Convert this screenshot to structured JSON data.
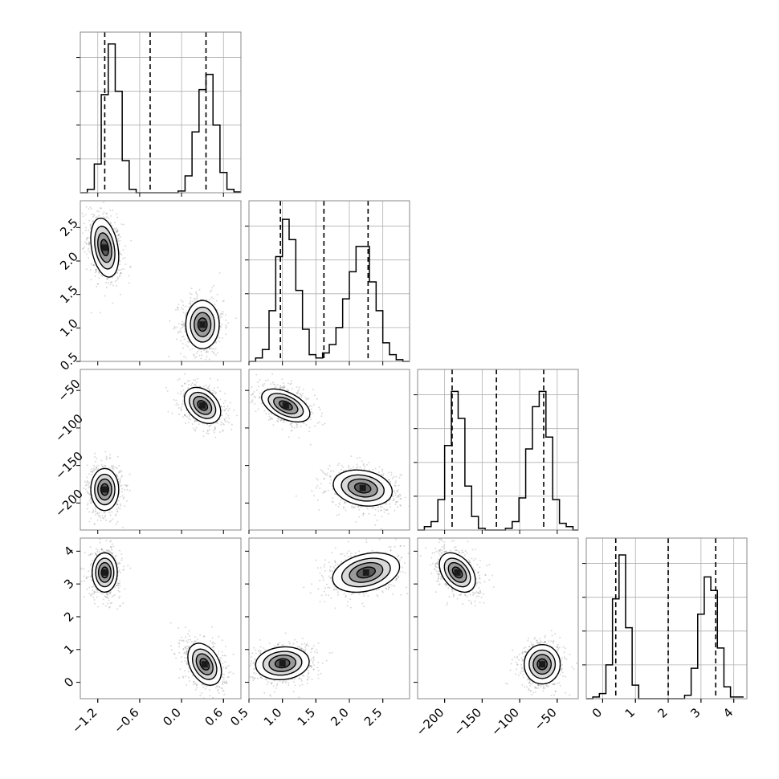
{
  "chart_data": {
    "type": "corner",
    "grid": true,
    "histogram_style": "step",
    "colors": {
      "line": "#000000",
      "grid": "#b0b0b0",
      "points": "#555555"
    },
    "parameters": [
      {
        "index": 0,
        "range": [
          -1.45,
          0.85
        ],
        "ticks": [
          -1.2,
          -0.6,
          0.0,
          0.6
        ],
        "tick_labels": [
          "−1.2",
          "−0.6",
          "0.0",
          "0.6"
        ],
        "quantiles": [
          -1.1,
          -0.45,
          0.35
        ]
      },
      {
        "index": 1,
        "range": [
          0.5,
          2.9
        ],
        "ticks": [
          0.5,
          1.0,
          1.5,
          2.0,
          2.5
        ],
        "tick_labels": [
          "0.5",
          "1.0",
          "1.5",
          "2.0",
          "2.5"
        ],
        "quantiles": [
          0.97,
          1.62,
          2.28
        ]
      },
      {
        "index": 2,
        "range": [
          -236,
          -22
        ],
        "ticks": [
          -200,
          -150,
          -100,
          -50
        ],
        "tick_labels": [
          "−200",
          "−150",
          "−100",
          "−50"
        ],
        "quantiles": [
          -190,
          -131,
          -68
        ]
      },
      {
        "index": 3,
        "range": [
          -0.5,
          4.4
        ],
        "ticks": [
          0,
          1,
          2,
          3,
          4
        ],
        "tick_labels": [
          "0",
          "1",
          "2",
          "3",
          "4"
        ],
        "quantiles": [
          0.4,
          2.0,
          3.45
        ]
      }
    ],
    "histograms": [
      {
        "param": 0,
        "bins": [
          -1.45,
          -1.35,
          -1.25,
          -1.15,
          -1.05,
          -0.95,
          -0.85,
          -0.75,
          -0.65,
          -0.55,
          -0.45,
          -0.35,
          -0.25,
          -0.15,
          -0.05,
          0.05,
          0.15,
          0.25,
          0.35,
          0.45,
          0.55,
          0.65,
          0.75,
          0.85
        ],
        "counts": [
          0,
          0.02,
          0.17,
          0.58,
          0.88,
          0.6,
          0.19,
          0.02,
          0,
          0,
          0,
          0,
          0,
          0,
          0.01,
          0.1,
          0.36,
          0.61,
          0.7,
          0.4,
          0.12,
          0.02,
          0.005
        ]
      },
      {
        "param": 1,
        "bins": [
          0.5,
          0.6,
          0.7,
          0.8,
          0.9,
          1.0,
          1.1,
          1.2,
          1.3,
          1.4,
          1.5,
          1.6,
          1.7,
          1.8,
          1.9,
          2.0,
          2.1,
          2.2,
          2.3,
          2.4,
          2.5,
          2.6,
          2.7,
          2.8,
          2.9
        ],
        "counts": [
          0,
          0.02,
          0.07,
          0.3,
          0.62,
          0.84,
          0.72,
          0.42,
          0.19,
          0.04,
          0.02,
          0.05,
          0.1,
          0.2,
          0.37,
          0.53,
          0.68,
          0.68,
          0.47,
          0.3,
          0.11,
          0.04,
          0.01,
          0
        ]
      },
      {
        "param": 2,
        "bins": [
          -236,
          -227,
          -218,
          -209,
          -200,
          -191,
          -182,
          -173,
          -164,
          -155,
          -146,
          -137,
          -128,
          -119,
          -110,
          -101,
          -92,
          -83,
          -74,
          -65,
          -56,
          -47,
          -38,
          -29,
          -22
        ],
        "counts": [
          0,
          0.02,
          0.05,
          0.18,
          0.5,
          0.82,
          0.66,
          0.26,
          0.08,
          0.01,
          0,
          0,
          0,
          0.01,
          0.05,
          0.19,
          0.48,
          0.73,
          0.82,
          0.55,
          0.18,
          0.04,
          0.02,
          0
        ]
      },
      {
        "param": 3,
        "bins": [
          -0.5,
          -0.3,
          -0.1,
          0.1,
          0.3,
          0.5,
          0.7,
          0.9,
          1.1,
          1.3,
          1.5,
          1.7,
          1.9,
          2.1,
          2.3,
          2.5,
          2.7,
          2.9,
          3.1,
          3.3,
          3.5,
          3.7,
          3.9,
          4.1,
          4.3
        ],
        "counts": [
          0,
          0.01,
          0.03,
          0.2,
          0.59,
          0.85,
          0.42,
          0.08,
          0,
          0,
          0,
          0,
          0,
          0,
          0,
          0.02,
          0.18,
          0.5,
          0.72,
          0.64,
          0.3,
          0.07,
          0.01,
          0.01
        ]
      }
    ],
    "scatter_panels": [
      {
        "x": 0,
        "y": 1,
        "clusters": [
          {
            "center": [
              -1.1,
              2.2
            ],
            "sx": 0.1,
            "sy": 0.22,
            "rho": -0.3
          },
          {
            "center": [
              0.3,
              1.05
            ],
            "sx": 0.12,
            "sy": 0.18,
            "rho": 0.0
          }
        ]
      },
      {
        "x": 0,
        "y": 2,
        "clusters": [
          {
            "center": [
              -1.1,
              -182
            ],
            "sx": 0.1,
            "sy": 14,
            "rho": 0.0
          },
          {
            "center": [
              0.3,
              -70
            ],
            "sx": 0.13,
            "sy": 12,
            "rho": -0.35
          }
        ]
      },
      {
        "x": 1,
        "y": 2,
        "clusters": [
          {
            "center": [
              1.05,
              -70
            ],
            "sx": 0.18,
            "sy": 11,
            "rho": -0.5
          },
          {
            "center": [
              2.2,
              -180
            ],
            "sx": 0.22,
            "sy": 12,
            "rho": -0.2
          }
        ]
      },
      {
        "x": 0,
        "y": 3,
        "clusters": [
          {
            "center": [
              -1.1,
              3.35
            ],
            "sx": 0.09,
            "sy": 0.3,
            "rho": 0.0
          },
          {
            "center": [
              0.33,
              0.55
            ],
            "sx": 0.12,
            "sy": 0.32,
            "rho": -0.35
          }
        ]
      },
      {
        "x": 1,
        "y": 3,
        "clusters": [
          {
            "center": [
              1.0,
              0.58
            ],
            "sx": 0.2,
            "sy": 0.25,
            "rho": 0.1
          },
          {
            "center": [
              2.25,
              3.35
            ],
            "sx": 0.25,
            "sy": 0.3,
            "rho": 0.3
          }
        ]
      },
      {
        "x": 2,
        "y": 3,
        "clusters": [
          {
            "center": [
              -183,
              3.35
            ],
            "sx": 12,
            "sy": 0.3,
            "rho": -0.4
          },
          {
            "center": [
              -70,
              0.55
            ],
            "sx": 12,
            "sy": 0.3,
            "rho": 0.0
          }
        ]
      }
    ]
  }
}
